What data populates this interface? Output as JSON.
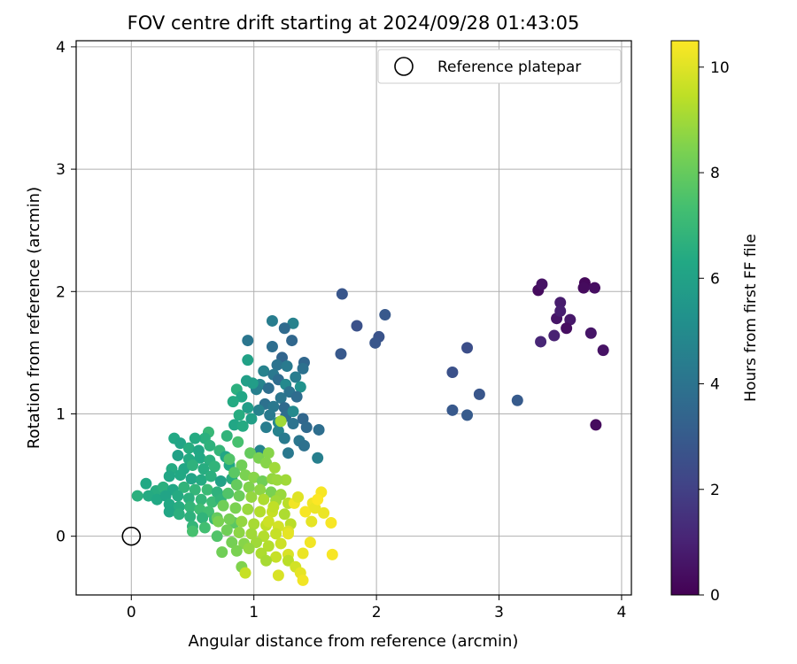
{
  "chart_data": {
    "type": "scatter",
    "title": "FOV centre drift starting at 2024/09/28 01:43:05",
    "xlabel": "Angular distance from reference (arcmin)",
    "ylabel": "Rotation from reference (arcmin)",
    "xlim": [
      -0.45,
      4.08
    ],
    "ylim": [
      -0.48,
      4.05
    ],
    "xticks": [
      0,
      1,
      2,
      3,
      4
    ],
    "yticks": [
      0,
      1,
      2,
      3,
      4
    ],
    "grid": true,
    "legend": {
      "position": "top-right",
      "entries": [
        "Reference platepar"
      ]
    },
    "reference_point": {
      "label": "Reference platepar",
      "x": 0,
      "y": 0
    },
    "colorbar": {
      "label": "Hours from first FF file",
      "colormap": "viridis",
      "range": [
        0,
        10.5
      ],
      "ticks": [
        0,
        2,
        4,
        6,
        8,
        10
      ]
    },
    "points": [
      {
        "x": 3.32,
        "y": 2.01,
        "c": 0.3
      },
      {
        "x": 3.35,
        "y": 2.06,
        "c": 0.5
      },
      {
        "x": 3.5,
        "y": 1.91,
        "c": 0.8
      },
      {
        "x": 3.47,
        "y": 1.78,
        "c": 0.6
      },
      {
        "x": 3.5,
        "y": 1.84,
        "c": 0.9
      },
      {
        "x": 3.58,
        "y": 1.77,
        "c": 0.7
      },
      {
        "x": 3.55,
        "y": 1.7,
        "c": 0.4
      },
      {
        "x": 3.45,
        "y": 1.64,
        "c": 1.0
      },
      {
        "x": 3.34,
        "y": 1.59,
        "c": 1.1
      },
      {
        "x": 3.7,
        "y": 2.07,
        "c": 0.2
      },
      {
        "x": 3.69,
        "y": 2.03,
        "c": 0.3
      },
      {
        "x": 3.78,
        "y": 2.03,
        "c": 0.4
      },
      {
        "x": 3.75,
        "y": 1.66,
        "c": 0.6
      },
      {
        "x": 3.85,
        "y": 1.52,
        "c": 0.5
      },
      {
        "x": 3.79,
        "y": 0.91,
        "c": 0.3
      },
      {
        "x": 1.72,
        "y": 1.98,
        "c": 2.8
      },
      {
        "x": 1.84,
        "y": 1.72,
        "c": 2.6
      },
      {
        "x": 2.07,
        "y": 1.81,
        "c": 2.9
      },
      {
        "x": 2.02,
        "y": 1.63,
        "c": 2.7
      },
      {
        "x": 1.99,
        "y": 1.58,
        "c": 2.8
      },
      {
        "x": 1.71,
        "y": 1.49,
        "c": 2.9
      },
      {
        "x": 2.74,
        "y": 1.54,
        "c": 2.5
      },
      {
        "x": 2.62,
        "y": 1.34,
        "c": 2.6
      },
      {
        "x": 2.84,
        "y": 1.16,
        "c": 2.8
      },
      {
        "x": 2.62,
        "y": 1.03,
        "c": 2.9
      },
      {
        "x": 2.74,
        "y": 0.99,
        "c": 3.0
      },
      {
        "x": 3.15,
        "y": 1.11,
        "c": 3.0
      },
      {
        "x": 1.15,
        "y": 1.76,
        "c": 4.4
      },
      {
        "x": 1.32,
        "y": 1.74,
        "c": 4.6
      },
      {
        "x": 1.25,
        "y": 1.7,
        "c": 3.6
      },
      {
        "x": 1.31,
        "y": 1.6,
        "c": 3.5
      },
      {
        "x": 0.95,
        "y": 1.6,
        "c": 4.1
      },
      {
        "x": 1.15,
        "y": 1.55,
        "c": 3.8
      },
      {
        "x": 1.23,
        "y": 1.46,
        "c": 3.4
      },
      {
        "x": 1.41,
        "y": 1.42,
        "c": 3.5
      },
      {
        "x": 1.19,
        "y": 1.4,
        "c": 4.0
      },
      {
        "x": 1.27,
        "y": 1.39,
        "c": 4.3
      },
      {
        "x": 1.4,
        "y": 1.37,
        "c": 3.9
      },
      {
        "x": 1.08,
        "y": 1.35,
        "c": 4.6
      },
      {
        "x": 1.16,
        "y": 1.32,
        "c": 4.2
      },
      {
        "x": 1.34,
        "y": 1.3,
        "c": 4.4
      },
      {
        "x": 1.2,
        "y": 1.28,
        "c": 3.7
      },
      {
        "x": 1.05,
        "y": 1.24,
        "c": 4.7
      },
      {
        "x": 1.26,
        "y": 1.24,
        "c": 4.9
      },
      {
        "x": 1.38,
        "y": 1.22,
        "c": 5.3
      },
      {
        "x": 1.02,
        "y": 1.2,
        "c": 4.5
      },
      {
        "x": 1.12,
        "y": 1.21,
        "c": 3.8
      },
      {
        "x": 1.29,
        "y": 1.18,
        "c": 4.0
      },
      {
        "x": 1.22,
        "y": 1.13,
        "c": 4.1
      },
      {
        "x": 1.35,
        "y": 1.14,
        "c": 3.7
      },
      {
        "x": 1.09,
        "y": 1.08,
        "c": 3.9
      },
      {
        "x": 1.16,
        "y": 1.06,
        "c": 4.2
      },
      {
        "x": 1.25,
        "y": 1.05,
        "c": 3.6
      },
      {
        "x": 1.04,
        "y": 1.03,
        "c": 4.6
      },
      {
        "x": 1.13,
        "y": 0.99,
        "c": 4.3
      },
      {
        "x": 1.26,
        "y": 0.98,
        "c": 3.8
      },
      {
        "x": 1.4,
        "y": 0.96,
        "c": 3.5
      },
      {
        "x": 1.32,
        "y": 0.92,
        "c": 4.0
      },
      {
        "x": 1.43,
        "y": 0.89,
        "c": 3.6
      },
      {
        "x": 1.53,
        "y": 0.87,
        "c": 3.8
      },
      {
        "x": 1.1,
        "y": 0.89,
        "c": 4.4
      },
      {
        "x": 1.2,
        "y": 0.86,
        "c": 4.6
      },
      {
        "x": 1.25,
        "y": 0.8,
        "c": 4.3
      },
      {
        "x": 1.37,
        "y": 0.78,
        "c": 4.1
      },
      {
        "x": 1.41,
        "y": 0.74,
        "c": 3.9
      },
      {
        "x": 1.28,
        "y": 0.68,
        "c": 4.2
      },
      {
        "x": 1.52,
        "y": 0.64,
        "c": 4.5
      },
      {
        "x": 1.05,
        "y": 0.7,
        "c": 4.7
      },
      {
        "x": 1.2,
        "y": 0.93,
        "c": 4.8
      },
      {
        "x": 1.32,
        "y": 1.02,
        "c": 4.9
      },
      {
        "x": 0.95,
        "y": 1.44,
        "c": 6.0
      },
      {
        "x": 0.94,
        "y": 1.27,
        "c": 5.9
      },
      {
        "x": 0.99,
        "y": 1.25,
        "c": 5.8
      },
      {
        "x": 0.86,
        "y": 1.2,
        "c": 6.6
      },
      {
        "x": 0.9,
        "y": 1.14,
        "c": 6.2
      },
      {
        "x": 0.83,
        "y": 1.1,
        "c": 6.4
      },
      {
        "x": 0.95,
        "y": 1.05,
        "c": 5.8
      },
      {
        "x": 0.88,
        "y": 0.99,
        "c": 6.5
      },
      {
        "x": 0.98,
        "y": 0.96,
        "c": 5.9
      },
      {
        "x": 0.84,
        "y": 0.91,
        "c": 6.2
      },
      {
        "x": 0.91,
        "y": 0.9,
        "c": 6.4
      },
      {
        "x": 0.78,
        "y": 0.82,
        "c": 6.8
      },
      {
        "x": 0.63,
        "y": 0.85,
        "c": 7.0
      },
      {
        "x": 0.6,
        "y": 0.8,
        "c": 6.6
      },
      {
        "x": 0.52,
        "y": 0.8,
        "c": 6.4
      },
      {
        "x": 0.35,
        "y": 0.8,
        "c": 6.3
      },
      {
        "x": 0.4,
        "y": 0.76,
        "c": 6.1
      },
      {
        "x": 0.47,
        "y": 0.72,
        "c": 6.5
      },
      {
        "x": 0.55,
        "y": 0.7,
        "c": 6.2
      },
      {
        "x": 0.64,
        "y": 0.74,
        "c": 6.7
      },
      {
        "x": 0.72,
        "y": 0.7,
        "c": 6.9
      },
      {
        "x": 0.38,
        "y": 0.66,
        "c": 6.0
      },
      {
        "x": 0.47,
        "y": 0.63,
        "c": 6.4
      },
      {
        "x": 0.56,
        "y": 0.64,
        "c": 6.3
      },
      {
        "x": 0.64,
        "y": 0.62,
        "c": 6.6
      },
      {
        "x": 0.77,
        "y": 0.65,
        "c": 6.2
      },
      {
        "x": 0.33,
        "y": 0.55,
        "c": 6.4
      },
      {
        "x": 0.43,
        "y": 0.55,
        "c": 6.2
      },
      {
        "x": 0.5,
        "y": 0.58,
        "c": 6.7
      },
      {
        "x": 0.59,
        "y": 0.55,
        "c": 6.5
      },
      {
        "x": 0.68,
        "y": 0.57,
        "c": 6.8
      },
      {
        "x": 0.8,
        "y": 0.58,
        "c": 6.3
      },
      {
        "x": 0.31,
        "y": 0.49,
        "c": 6.2
      },
      {
        "x": 0.4,
        "y": 0.5,
        "c": 6.3
      },
      {
        "x": 0.49,
        "y": 0.47,
        "c": 6.1
      },
      {
        "x": 0.57,
        "y": 0.46,
        "c": 6.4
      },
      {
        "x": 0.65,
        "y": 0.49,
        "c": 6.6
      },
      {
        "x": 0.73,
        "y": 0.45,
        "c": 6.0
      },
      {
        "x": 0.82,
        "y": 0.47,
        "c": 6.5
      },
      {
        "x": 0.12,
        "y": 0.43,
        "c": 6.3
      },
      {
        "x": 0.2,
        "y": 0.37,
        "c": 6.5
      },
      {
        "x": 0.26,
        "y": 0.4,
        "c": 6.6
      },
      {
        "x": 0.34,
        "y": 0.38,
        "c": 6.2
      },
      {
        "x": 0.43,
        "y": 0.4,
        "c": 6.8
      },
      {
        "x": 0.52,
        "y": 0.38,
        "c": 6.9
      },
      {
        "x": 0.62,
        "y": 0.38,
        "c": 7.1
      },
      {
        "x": 0.7,
        "y": 0.36,
        "c": 6.7
      },
      {
        "x": 0.05,
        "y": 0.33,
        "c": 6.6
      },
      {
        "x": 0.14,
        "y": 0.33,
        "c": 6.4
      },
      {
        "x": 0.21,
        "y": 0.3,
        "c": 6.3
      },
      {
        "x": 0.28,
        "y": 0.33,
        "c": 6.1
      },
      {
        "x": 0.38,
        "y": 0.33,
        "c": 6.4
      },
      {
        "x": 0.47,
        "y": 0.31,
        "c": 6.6
      },
      {
        "x": 0.57,
        "y": 0.3,
        "c": 6.9
      },
      {
        "x": 0.66,
        "y": 0.28,
        "c": 7.1
      },
      {
        "x": 0.73,
        "y": 0.3,
        "c": 6.8
      },
      {
        "x": 0.31,
        "y": 0.26,
        "c": 6.3
      },
      {
        "x": 0.39,
        "y": 0.24,
        "c": 6.5
      },
      {
        "x": 0.48,
        "y": 0.24,
        "c": 6.9
      },
      {
        "x": 0.56,
        "y": 0.22,
        "c": 7.2
      },
      {
        "x": 0.63,
        "y": 0.2,
        "c": 7.3
      },
      {
        "x": 0.31,
        "y": 0.2,
        "c": 6.2
      },
      {
        "x": 0.39,
        "y": 0.18,
        "c": 6.6
      },
      {
        "x": 0.48,
        "y": 0.16,
        "c": 6.7
      },
      {
        "x": 0.58,
        "y": 0.15,
        "c": 6.8
      },
      {
        "x": 0.68,
        "y": 0.14,
        "c": 7.0
      },
      {
        "x": 0.5,
        "y": 0.08,
        "c": 6.9
      },
      {
        "x": 0.6,
        "y": 0.07,
        "c": 7.3
      },
      {
        "x": 0.5,
        "y": 0.04,
        "c": 7.4
      },
      {
        "x": 0.7,
        "y": 0.0,
        "c": 7.6
      },
      {
        "x": 0.84,
        "y": 0.11,
        "c": 7.8
      },
      {
        "x": 0.87,
        "y": 0.77,
        "c": 7.4
      },
      {
        "x": 0.8,
        "y": 0.63,
        "c": 7.6
      },
      {
        "x": 0.97,
        "y": 0.68,
        "c": 8.0
      },
      {
        "x": 1.04,
        "y": 0.64,
        "c": 8.4
      },
      {
        "x": 1.12,
        "y": 0.68,
        "c": 8.6
      },
      {
        "x": 0.9,
        "y": 0.58,
        "c": 8.2
      },
      {
        "x": 1.1,
        "y": 0.6,
        "c": 8.6
      },
      {
        "x": 1.17,
        "y": 0.56,
        "c": 9.0
      },
      {
        "x": 0.84,
        "y": 0.52,
        "c": 7.8
      },
      {
        "x": 0.93,
        "y": 0.5,
        "c": 8.4
      },
      {
        "x": 1.0,
        "y": 0.48,
        "c": 8.6
      },
      {
        "x": 1.07,
        "y": 0.45,
        "c": 8.2
      },
      {
        "x": 1.15,
        "y": 0.47,
        "c": 8.8
      },
      {
        "x": 1.26,
        "y": 0.46,
        "c": 9.0
      },
      {
        "x": 0.86,
        "y": 0.42,
        "c": 8.0
      },
      {
        "x": 0.96,
        "y": 0.4,
        "c": 8.5
      },
      {
        "x": 1.05,
        "y": 0.38,
        "c": 8.7
      },
      {
        "x": 1.14,
        "y": 0.36,
        "c": 8.4
      },
      {
        "x": 1.22,
        "y": 0.34,
        "c": 8.9
      },
      {
        "x": 0.79,
        "y": 0.35,
        "c": 7.6
      },
      {
        "x": 0.88,
        "y": 0.33,
        "c": 8.1
      },
      {
        "x": 0.98,
        "y": 0.32,
        "c": 8.8
      },
      {
        "x": 1.08,
        "y": 0.3,
        "c": 9.2
      },
      {
        "x": 1.18,
        "y": 0.29,
        "c": 9.0
      },
      {
        "x": 1.28,
        "y": 0.27,
        "c": 9.4
      },
      {
        "x": 0.75,
        "y": 0.25,
        "c": 8.2
      },
      {
        "x": 0.85,
        "y": 0.23,
        "c": 8.4
      },
      {
        "x": 0.95,
        "y": 0.22,
        "c": 8.9
      },
      {
        "x": 1.05,
        "y": 0.2,
        "c": 9.3
      },
      {
        "x": 1.15,
        "y": 0.2,
        "c": 9.6
      },
      {
        "x": 1.25,
        "y": 0.18,
        "c": 9.2
      },
      {
        "x": 0.7,
        "y": 0.15,
        "c": 8.0
      },
      {
        "x": 0.8,
        "y": 0.14,
        "c": 8.3
      },
      {
        "x": 0.9,
        "y": 0.12,
        "c": 8.8
      },
      {
        "x": 1.0,
        "y": 0.1,
        "c": 9.1
      },
      {
        "x": 1.1,
        "y": 0.09,
        "c": 9.5
      },
      {
        "x": 1.2,
        "y": 0.08,
        "c": 9.8
      },
      {
        "x": 1.3,
        "y": 0.1,
        "c": 9.4
      },
      {
        "x": 0.78,
        "y": 0.05,
        "c": 8.2
      },
      {
        "x": 0.88,
        "y": 0.03,
        "c": 8.7
      },
      {
        "x": 0.98,
        "y": 0.02,
        "c": 9.0
      },
      {
        "x": 1.08,
        "y": 0.0,
        "c": 9.3
      },
      {
        "x": 1.18,
        "y": 0.02,
        "c": 9.6
      },
      {
        "x": 1.28,
        "y": 0.04,
        "c": 9.9
      },
      {
        "x": 0.82,
        "y": -0.05,
        "c": 8.3
      },
      {
        "x": 0.92,
        "y": -0.06,
        "c": 8.6
      },
      {
        "x": 1.02,
        "y": -0.05,
        "c": 9.0
      },
      {
        "x": 1.12,
        "y": -0.08,
        "c": 9.3
      },
      {
        "x": 1.22,
        "y": -0.06,
        "c": 9.7
      },
      {
        "x": 0.74,
        "y": -0.13,
        "c": 8.2
      },
      {
        "x": 0.86,
        "y": -0.12,
        "c": 8.4
      },
      {
        "x": 0.96,
        "y": -0.1,
        "c": 8.8
      },
      {
        "x": 1.06,
        "y": -0.14,
        "c": 9.2
      },
      {
        "x": 1.18,
        "y": -0.17,
        "c": 9.6
      },
      {
        "x": 1.28,
        "y": -0.15,
        "c": 9.9
      },
      {
        "x": 0.9,
        "y": -0.25,
        "c": 8.5
      },
      {
        "x": 1.1,
        "y": -0.2,
        "c": 9.1
      },
      {
        "x": 1.28,
        "y": -0.2,
        "c": 9.4
      },
      {
        "x": 1.34,
        "y": -0.25,
        "c": 9.8
      },
      {
        "x": 0.93,
        "y": -0.3,
        "c": 9.6
      },
      {
        "x": 1.2,
        "y": -0.32,
        "c": 9.9
      },
      {
        "x": 1.38,
        "y": -0.3,
        "c": 10.1
      },
      {
        "x": 1.4,
        "y": -0.36,
        "c": 10.3
      },
      {
        "x": 0.71,
        "y": 0.12,
        "c": 8.4
      },
      {
        "x": 1.22,
        "y": 0.94,
        "c": 9.0
      },
      {
        "x": 1.19,
        "y": 0.46,
        "c": 8.9
      },
      {
        "x": 1.16,
        "y": 0.24,
        "c": 9.5
      },
      {
        "x": 1.12,
        "y": 0.12,
        "c": 9.7
      },
      {
        "x": 1.33,
        "y": 0.27,
        "c": 10.3
      },
      {
        "x": 1.28,
        "y": 0.02,
        "c": 10.1
      },
      {
        "x": 1.42,
        "y": 0.2,
        "c": 10.4
      },
      {
        "x": 1.48,
        "y": 0.27,
        "c": 10.3
      },
      {
        "x": 1.5,
        "y": 0.23,
        "c": 10.2
      },
      {
        "x": 1.55,
        "y": 0.36,
        "c": 10.4
      },
      {
        "x": 1.52,
        "y": 0.3,
        "c": 10.5
      },
      {
        "x": 1.57,
        "y": 0.19,
        "c": 10.2
      },
      {
        "x": 1.63,
        "y": 0.11,
        "c": 10.4
      },
      {
        "x": 1.47,
        "y": 0.12,
        "c": 10.1
      },
      {
        "x": 1.46,
        "y": -0.05,
        "c": 10.3
      },
      {
        "x": 1.4,
        "y": -0.14,
        "c": 10.2
      },
      {
        "x": 1.64,
        "y": -0.15,
        "c": 10.4
      },
      {
        "x": 1.36,
        "y": 0.32,
        "c": 10.0
      }
    ]
  }
}
